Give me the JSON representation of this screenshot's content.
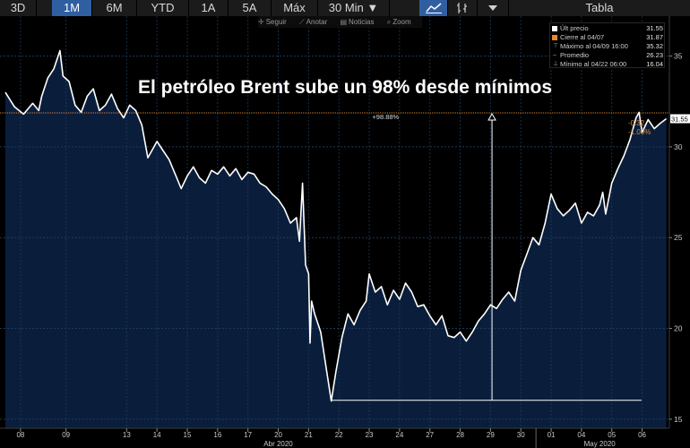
{
  "toolbar": {
    "ranges": [
      {
        "label": "3D",
        "active": false
      },
      {
        "label": "1M",
        "active": true
      },
      {
        "label": "6M",
        "active": false
      },
      {
        "label": "YTD",
        "active": false
      },
      {
        "label": "1A",
        "active": false
      },
      {
        "label": "5A",
        "active": false
      },
      {
        "label": "Máx",
        "active": false
      }
    ],
    "interval_label": "30 Min ▼",
    "table_label": "Tabla"
  },
  "subbar": {
    "follow_label": "Seguir",
    "annotate_label": "Anotar",
    "news_label": "Noticias",
    "zoom_label": "Zoom"
  },
  "headline": "El petróleo Brent sube un 98% desde mínimos",
  "legend": {
    "last_price_label": "Últ precio",
    "last_price_value": "31.55",
    "close_label": "Cierre al 04/07",
    "close_value": "31.87",
    "max_label": "Máximo al 04/09 16:00",
    "max_value": "35.32",
    "avg_label": "Promedio",
    "avg_value": "26.23",
    "min_label": "Mínimo al 04/22 06:00",
    "min_value": "16.04"
  },
  "colors": {
    "background": "#000000",
    "area_fill": "#0a1e3c",
    "line": "#ffffff",
    "reference_line": "#e08a2c",
    "toolbar_bg": "#1b1b1b",
    "toolbar_active": "#2f5fa0",
    "grid": "#1c3a5c"
  },
  "chart_data": {
    "type": "area",
    "y_ticks": [
      15,
      20,
      25,
      30,
      35
    ],
    "ylim": [
      14.5,
      37.2
    ],
    "last_price_tag": "31.55",
    "change_abs": "-0.32",
    "change_pct": "-1.00%",
    "range_annotation": "+98.88%",
    "ref_value": 31.87,
    "min_value": 16.04,
    "x_ticks": [
      {
        "label": "08",
        "x": 0.5
      },
      {
        "label": "09",
        "x": 2
      },
      {
        "label": "13",
        "x": 4
      },
      {
        "label": "14",
        "x": 5
      },
      {
        "label": "15",
        "x": 6
      },
      {
        "label": "16",
        "x": 7
      },
      {
        "label": "17",
        "x": 8
      },
      {
        "label": "20",
        "x": 9
      },
      {
        "label": "21",
        "x": 10
      },
      {
        "label": "22",
        "x": 11
      },
      {
        "label": "23",
        "x": 12
      },
      {
        "label": "24",
        "x": 13
      },
      {
        "label": "27",
        "x": 14
      },
      {
        "label": "28",
        "x": 15
      },
      {
        "label": "29",
        "x": 16
      },
      {
        "label": "30",
        "x": 17
      },
      {
        "label": "01",
        "x": 18
      },
      {
        "label": "04",
        "x": 19
      },
      {
        "label": "05",
        "x": 20
      },
      {
        "label": "06",
        "x": 21
      }
    ],
    "month_labels": [
      {
        "label": "Abr 2020",
        "x": 9
      },
      {
        "label": "May 2020",
        "x": 19.6
      }
    ],
    "xlim": [
      0,
      21.9
    ],
    "series": [
      {
        "points": [
          [
            0.0,
            33.0
          ],
          [
            0.3,
            32.2
          ],
          [
            0.6,
            31.8
          ],
          [
            0.9,
            32.4
          ],
          [
            1.1,
            32.0
          ],
          [
            1.2,
            32.8
          ],
          [
            1.4,
            33.8
          ],
          [
            1.6,
            34.3
          ],
          [
            1.8,
            35.3
          ],
          [
            1.9,
            33.9
          ],
          [
            2.1,
            33.6
          ],
          [
            2.3,
            32.3
          ],
          [
            2.5,
            31.9
          ],
          [
            2.7,
            32.8
          ],
          [
            2.9,
            33.2
          ],
          [
            3.1,
            32.0
          ],
          [
            3.3,
            32.3
          ],
          [
            3.5,
            32.9
          ],
          [
            3.7,
            32.1
          ],
          [
            3.9,
            31.6
          ],
          [
            4.1,
            32.3
          ],
          [
            4.3,
            32.0
          ],
          [
            4.5,
            31.2
          ],
          [
            4.7,
            29.4
          ],
          [
            4.9,
            30.0
          ],
          [
            5.0,
            30.3
          ],
          [
            5.2,
            29.8
          ],
          [
            5.4,
            29.3
          ],
          [
            5.6,
            28.5
          ],
          [
            5.8,
            27.7
          ],
          [
            6.0,
            28.4
          ],
          [
            6.2,
            28.9
          ],
          [
            6.4,
            28.3
          ],
          [
            6.6,
            28.0
          ],
          [
            6.8,
            28.7
          ],
          [
            7.0,
            28.5
          ],
          [
            7.2,
            28.9
          ],
          [
            7.4,
            28.4
          ],
          [
            7.6,
            28.8
          ],
          [
            7.8,
            28.2
          ],
          [
            8.0,
            28.6
          ],
          [
            8.2,
            28.5
          ],
          [
            8.4,
            28.0
          ],
          [
            8.6,
            27.8
          ],
          [
            8.8,
            27.4
          ],
          [
            9.0,
            27.1
          ],
          [
            9.2,
            26.6
          ],
          [
            9.4,
            25.8
          ],
          [
            9.6,
            26.1
          ],
          [
            9.7,
            24.8
          ],
          [
            9.8,
            28.0
          ],
          [
            9.9,
            23.5
          ],
          [
            10.0,
            23.0
          ],
          [
            10.05,
            19.2
          ],
          [
            10.1,
            21.5
          ],
          [
            10.2,
            20.8
          ],
          [
            10.4,
            19.8
          ],
          [
            10.6,
            17.6
          ],
          [
            10.75,
            16.0
          ],
          [
            10.9,
            17.6
          ],
          [
            11.1,
            19.5
          ],
          [
            11.3,
            20.8
          ],
          [
            11.5,
            20.2
          ],
          [
            11.7,
            21.0
          ],
          [
            11.9,
            21.5
          ],
          [
            12.0,
            23.0
          ],
          [
            12.2,
            22.0
          ],
          [
            12.4,
            22.3
          ],
          [
            12.6,
            21.3
          ],
          [
            12.8,
            22.1
          ],
          [
            13.0,
            21.6
          ],
          [
            13.2,
            22.5
          ],
          [
            13.4,
            22.0
          ],
          [
            13.6,
            21.2
          ],
          [
            13.8,
            21.3
          ],
          [
            14.0,
            20.7
          ],
          [
            14.2,
            20.2
          ],
          [
            14.4,
            20.7
          ],
          [
            14.6,
            19.6
          ],
          [
            14.8,
            19.5
          ],
          [
            15.0,
            19.8
          ],
          [
            15.2,
            19.3
          ],
          [
            15.4,
            19.8
          ],
          [
            15.6,
            20.4
          ],
          [
            15.8,
            20.8
          ],
          [
            16.0,
            21.3
          ],
          [
            16.2,
            21.1
          ],
          [
            16.4,
            21.6
          ],
          [
            16.6,
            22.0
          ],
          [
            16.8,
            21.5
          ],
          [
            17.0,
            23.2
          ],
          [
            17.2,
            24.1
          ],
          [
            17.4,
            25.0
          ],
          [
            17.6,
            24.6
          ],
          [
            17.8,
            25.8
          ],
          [
            18.0,
            27.4
          ],
          [
            18.2,
            26.6
          ],
          [
            18.4,
            26.2
          ],
          [
            18.6,
            26.5
          ],
          [
            18.8,
            26.9
          ],
          [
            19.0,
            25.8
          ],
          [
            19.2,
            26.4
          ],
          [
            19.4,
            26.2
          ],
          [
            19.6,
            26.8
          ],
          [
            19.7,
            27.5
          ],
          [
            19.8,
            26.3
          ],
          [
            20.0,
            28.0
          ],
          [
            20.2,
            28.8
          ],
          [
            20.4,
            29.5
          ],
          [
            20.6,
            30.4
          ],
          [
            20.8,
            31.6
          ],
          [
            20.9,
            31.9
          ],
          [
            21.0,
            30.8
          ],
          [
            21.2,
            31.5
          ],
          [
            21.4,
            31.0
          ],
          [
            21.6,
            31.3
          ],
          [
            21.8,
            31.55
          ]
        ]
      }
    ]
  }
}
